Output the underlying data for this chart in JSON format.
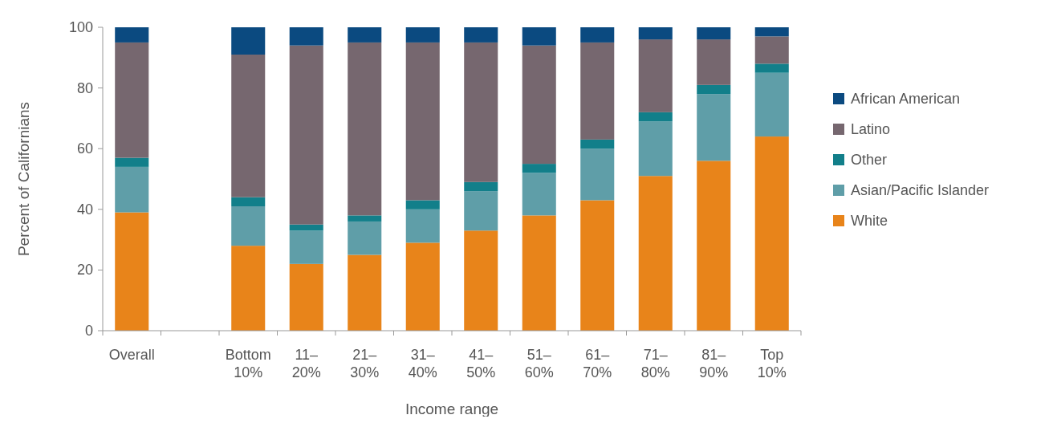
{
  "chart_data": {
    "type": "bar",
    "stacked": true,
    "xlabel": "Income range",
    "ylabel": "Percent of Californians",
    "categories": [
      "Overall",
      null,
      "Bottom 10%",
      "11–20%",
      "21–30%",
      "31–40%",
      "41–50%",
      "51–60%",
      "61–70%",
      "71–80%",
      "81–90%",
      "Top 10%"
    ],
    "series": [
      {
        "name": "White",
        "color": "#e8841a",
        "values": [
          39,
          null,
          28,
          22,
          25,
          29,
          33,
          38,
          43,
          51,
          56,
          64
        ]
      },
      {
        "name": "Asian/Pacific Islander",
        "color": "#5f9ea8",
        "values": [
          15,
          null,
          13,
          11,
          11,
          11,
          13,
          14,
          17,
          18,
          22,
          21
        ]
      },
      {
        "name": "Other",
        "color": "#127f8a",
        "values": [
          3,
          null,
          3,
          2,
          2,
          3,
          3,
          3,
          3,
          3,
          3,
          3
        ]
      },
      {
        "name": "Latino",
        "color": "#76676f",
        "values": [
          38,
          null,
          47,
          59,
          57,
          52,
          46,
          39,
          32,
          24,
          15,
          9
        ]
      },
      {
        "name": "African American",
        "color": "#0b4a80",
        "values": [
          5,
          null,
          9,
          6,
          5,
          5,
          5,
          6,
          5,
          4,
          4,
          3
        ]
      }
    ],
    "ylim": [
      0,
      100
    ],
    "yticks": [
      0,
      20,
      40,
      60,
      80,
      100
    ],
    "grid": false,
    "legend": "right"
  }
}
